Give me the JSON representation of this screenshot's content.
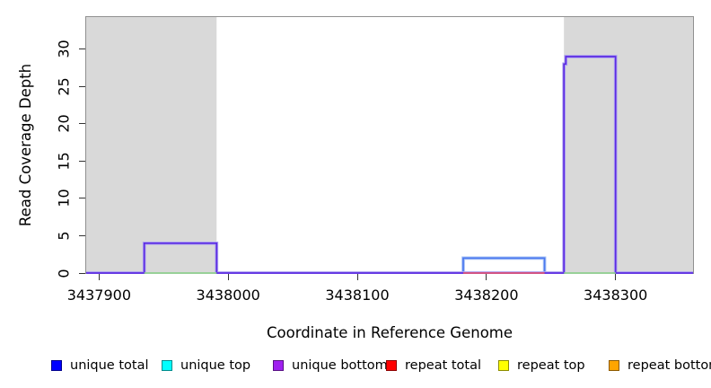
{
  "figure": {
    "background": "#FFFFFF",
    "shade_color": "#D9D9D9",
    "border_color": "#909090",
    "tick_color": "#333333"
  },
  "chart_data": {
    "type": "line",
    "subtype": "step",
    "title": "",
    "xlabel": "Coordinate in Reference Genome",
    "ylabel": "Read Coverage Depth",
    "xlim": [
      3437890,
      3438360
    ],
    "ylim": [
      0,
      34.3
    ],
    "x_ticks": [
      3437900,
      3438000,
      3438100,
      3438200,
      3438300
    ],
    "y_ticks": [
      0,
      5,
      10,
      15,
      20,
      25,
      30
    ],
    "grid": false,
    "shaded_regions": [
      {
        "x0": 3437890,
        "x1": 3437991,
        "label": "left-shaded-region"
      },
      {
        "x0": 3438260,
        "x1": 3438360,
        "label": "right-shaded-region"
      }
    ],
    "series": [
      {
        "name": "unique-total-depth2-step",
        "color": "#4C79EF",
        "halo": "#A9C4F6",
        "width": 1.7,
        "points": [
          [
            3438182,
            0
          ],
          [
            3438182,
            2
          ],
          [
            3438245,
            2
          ],
          [
            3438245,
            0
          ]
        ]
      },
      {
        "name": "unique-coverage-main-step",
        "color": "#5C2BE2",
        "halo": "#AEA3F0",
        "width": 1.7,
        "points": [
          [
            3437890,
            0
          ],
          [
            3437935,
            0
          ],
          [
            3437935,
            4
          ],
          [
            3437991,
            4
          ],
          [
            3437991,
            0
          ],
          [
            3438260,
            0
          ],
          [
            3438260,
            28
          ],
          [
            3438261.5,
            28
          ],
          [
            3438261.5,
            29
          ],
          [
            3438300,
            29
          ],
          [
            3438300,
            0
          ],
          [
            3438360,
            0
          ]
        ]
      },
      {
        "name": "repeat-zero-line",
        "color": "#E05575",
        "width": 1.8,
        "segments": [
          [
            [
              3438182,
              0
            ],
            [
              3438245,
              0
            ]
          ]
        ]
      },
      {
        "name": "top-strand-zero-line",
        "color": "#8FCE8F",
        "width": 1.8,
        "segments": [
          [
            [
              3437935,
              0
            ],
            [
              3437991,
              0
            ]
          ],
          [
            [
              3438260,
              0
            ],
            [
              3438300,
              0
            ]
          ]
        ]
      }
    ],
    "legend": {
      "position": "bottom",
      "items": [
        {
          "label": "unique total",
          "color": "#0000FF"
        },
        {
          "label": "unique top",
          "color": "#00FFFF"
        },
        {
          "label": "unique bottom",
          "color": "#A020F0"
        },
        {
          "label": "repeat total",
          "color": "#FF0000"
        },
        {
          "label": "repeat top",
          "color": "#FFFF00"
        },
        {
          "label": "repeat bottom",
          "color": "#FFA500"
        }
      ]
    }
  }
}
